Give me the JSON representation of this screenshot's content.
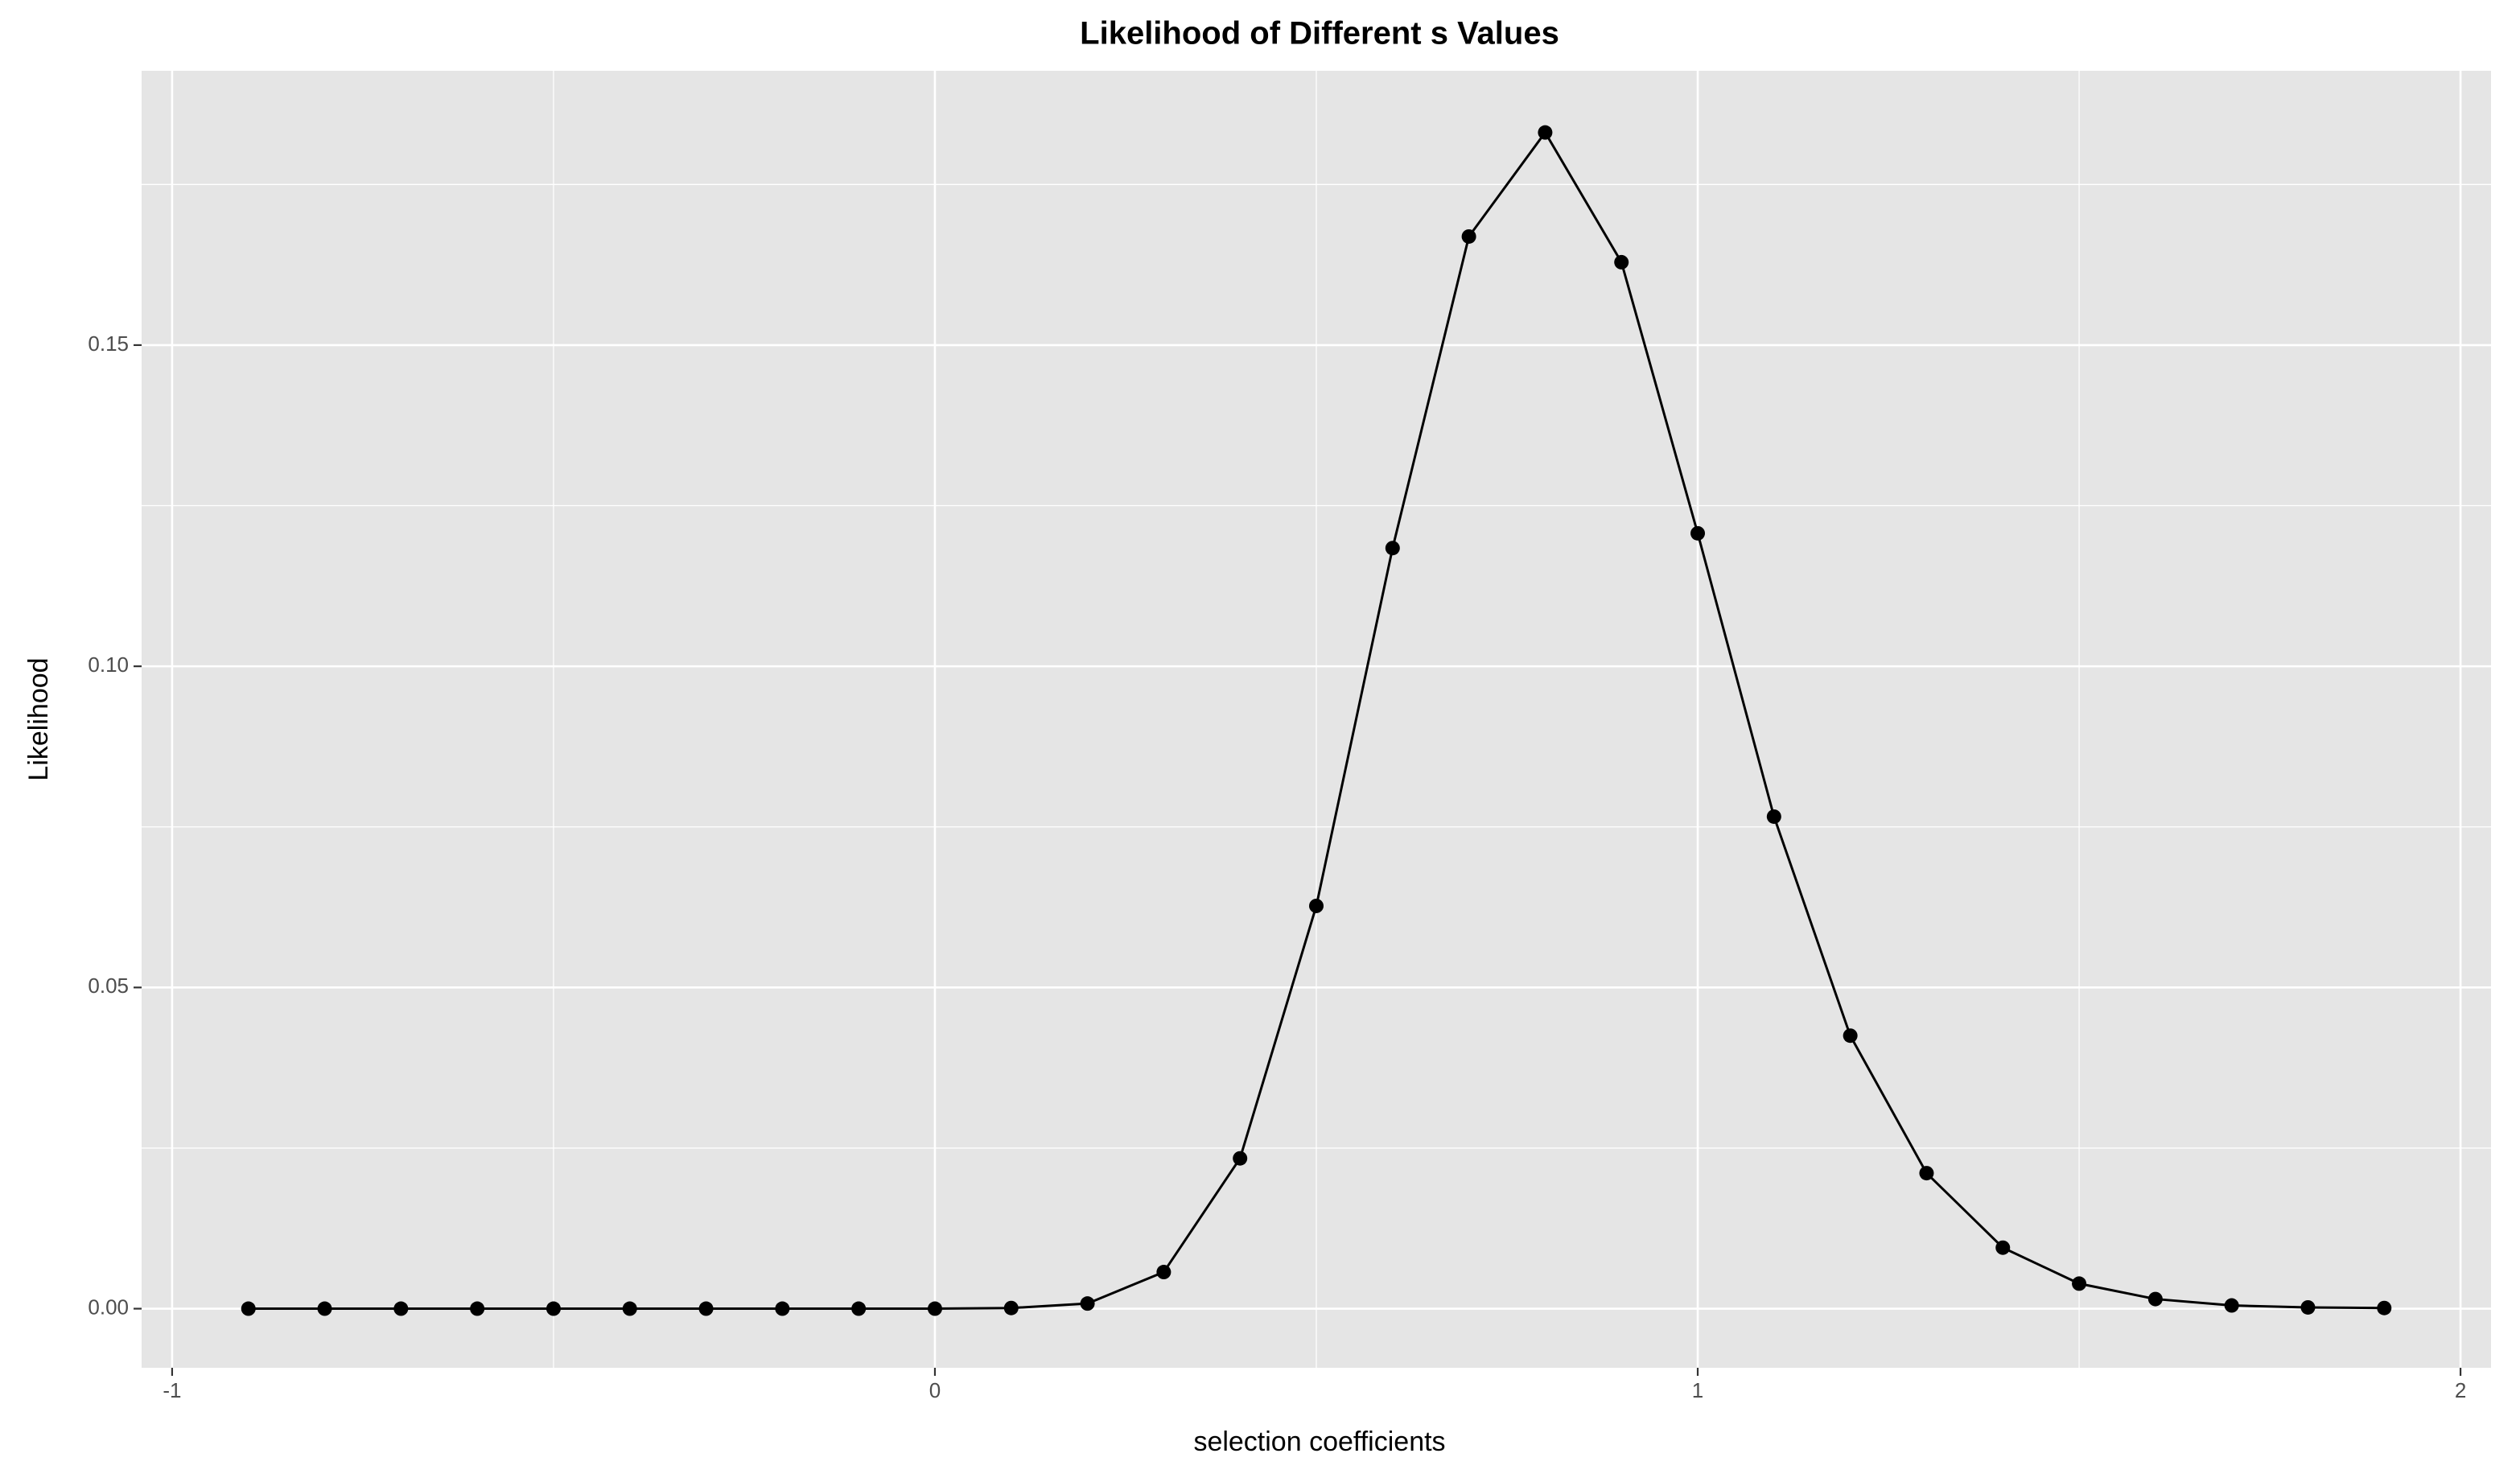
{
  "chart_data": {
    "type": "line",
    "title": "Likelihood of Different s Values",
    "x_label": "selection coefficients",
    "y_label": "Likelihood",
    "x": [
      -0.9,
      -0.8,
      -0.7,
      -0.6,
      -0.5,
      -0.4,
      -0.3,
      -0.2,
      -0.1,
      0.0,
      0.1,
      0.2,
      0.3,
      0.4,
      0.5,
      0.6,
      0.7,
      0.8,
      0.9,
      1.0,
      1.1,
      1.2,
      1.3,
      1.4,
      1.5,
      1.6,
      1.7,
      1.8,
      1.9
    ],
    "series": [
      {
        "color": "#000000",
        "values": [
          0,
          0,
          0,
          0,
          0,
          0,
          0,
          0,
          0,
          0,
          0.0001,
          0.0008,
          0.0057,
          0.0234,
          0.0627,
          0.1184,
          0.1669,
          0.1831,
          0.1629,
          0.1207,
          0.0766,
          0.0425,
          0.0211,
          0.0095,
          0.0039,
          0.0015,
          0.0005,
          0.0002,
          0.0001
        ]
      }
    ],
    "xlim": [
      -1.04,
      2.04
    ],
    "ylim": [
      -0.0092,
      0.1927
    ],
    "xticks": [
      -1,
      0,
      1,
      2
    ],
    "xminorticks": [
      -0.5,
      0.5,
      1.5
    ],
    "yticks": [
      {
        "value": 0,
        "label": "0.00"
      },
      {
        "value": 0.05,
        "label": "0.05"
      },
      {
        "value": 0.1,
        "label": "0.10"
      },
      {
        "value": 0.15,
        "label": "0.15"
      }
    ],
    "yminorticks": [
      0.025,
      0.075,
      0.125,
      0.175
    ],
    "grid": true,
    "markers": true,
    "panel_color": "#e5e5e5"
  }
}
